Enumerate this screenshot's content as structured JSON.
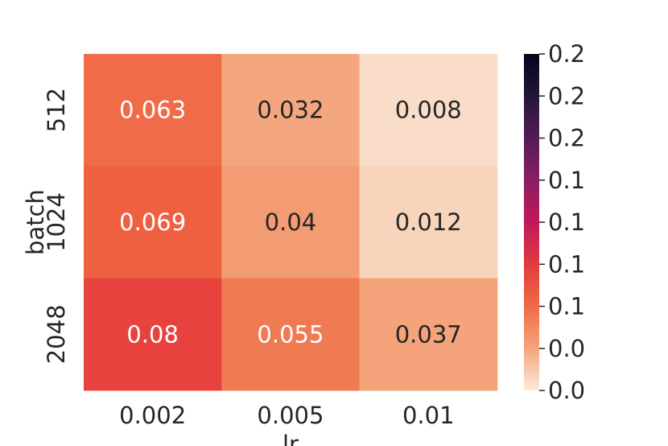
{
  "chart_data": {
    "type": "heatmap",
    "title": "",
    "xlabel": "lr",
    "ylabel": "batch",
    "x_categories": [
      "0.002",
      "0.005",
      "0.01"
    ],
    "y_categories": [
      "512",
      "1024",
      "2048"
    ],
    "values": [
      [
        0.063,
        0.032,
        0.008
      ],
      [
        0.069,
        0.04,
        0.012
      ],
      [
        0.08,
        0.055,
        0.037
      ]
    ],
    "cell_labels": [
      [
        "0.063",
        "0.032",
        "0.008"
      ],
      [
        "0.069",
        "0.04",
        "0.012"
      ],
      [
        "0.08",
        "0.055",
        "0.037"
      ]
    ],
    "cell_colors": [
      [
        "#f06b48",
        "#f4a77e",
        "#f9ddc9"
      ],
      [
        "#ef6040",
        "#f39b72",
        "#f8d4bc"
      ],
      [
        "#e8423f",
        "#f07a52",
        "#f4a37a"
      ]
    ],
    "cell_text_colors": [
      [
        "#ffffff",
        "#262626",
        "#262626"
      ],
      [
        "#ffffff",
        "#262626",
        "#262626"
      ],
      [
        "#ffffff",
        "#ffffff",
        "#262626"
      ]
    ],
    "colorbar": {
      "tick_labels": [
        "0.2",
        "0.2",
        "0.2",
        "0.1",
        "0.1",
        "0.1",
        "0.1",
        "0.0",
        "0.0"
      ],
      "color_stops": [
        "#faebdd",
        "#f6a47c",
        "#f06b48",
        "#e03b3f",
        "#c2185a",
        "#8a1e63",
        "#531c58",
        "#241637",
        "#03051a"
      ]
    },
    "grid": false
  }
}
